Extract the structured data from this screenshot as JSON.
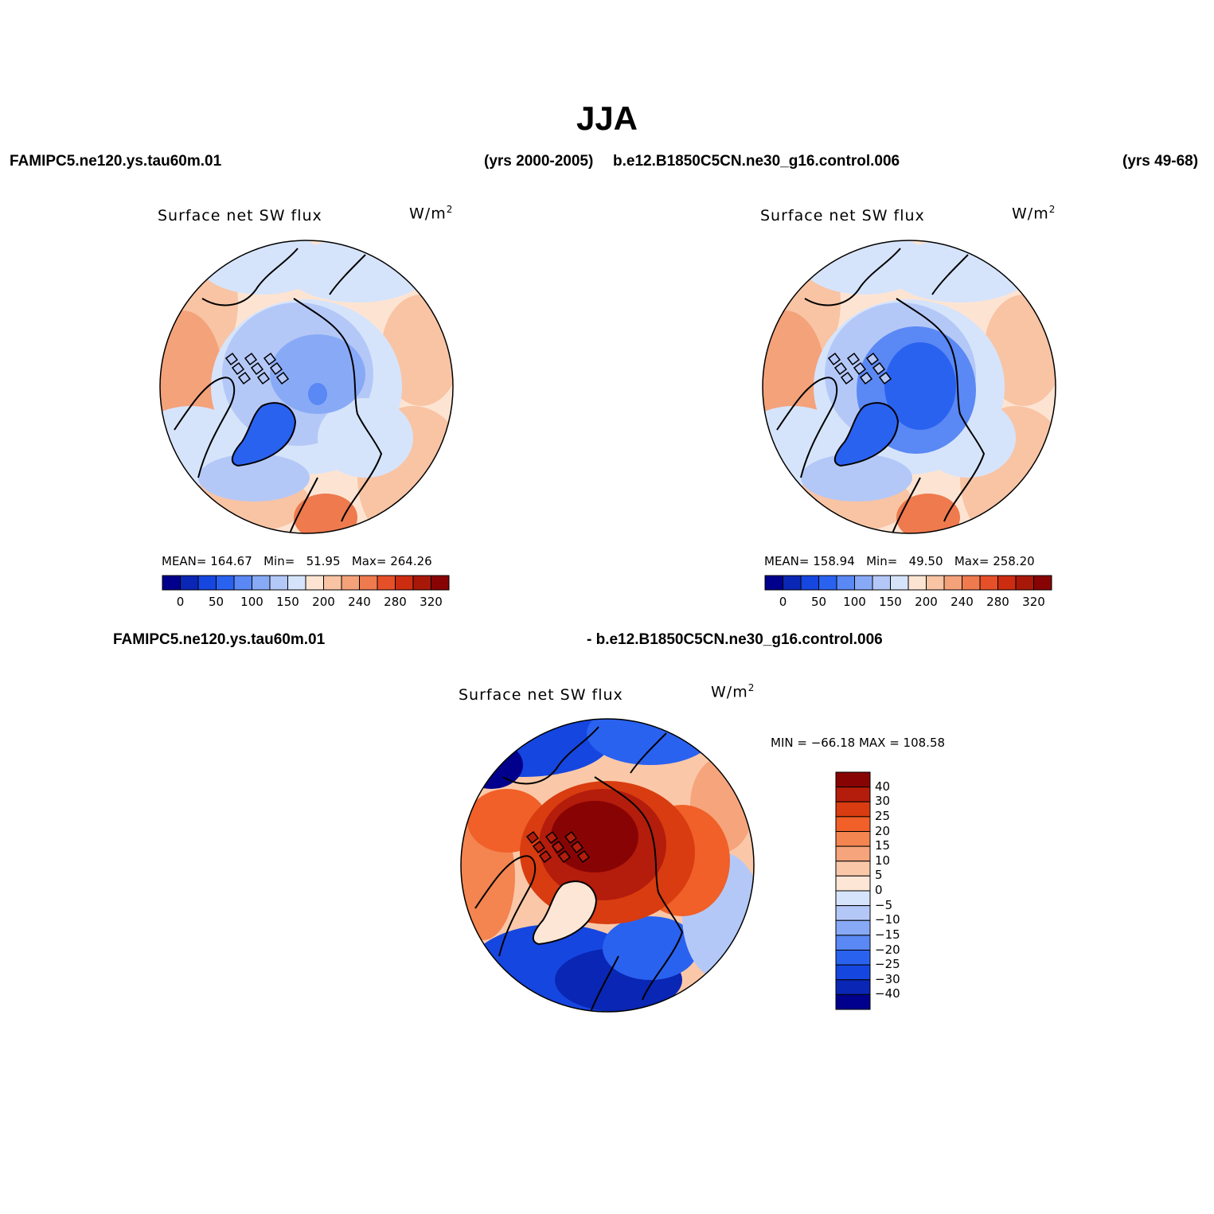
{
  "figure": {
    "title": "JJA",
    "header": {
      "left_case": "FAMIPC5.ne120.ys.tau60m.01",
      "left_years": "(yrs 2000-2005)",
      "right_case": "b.e12.B1850C5CN.ne30_g16.control.006",
      "right_years": "(yrs 49-68)"
    },
    "diff_header": {
      "left": "FAMIPC5.ne120.ys.tau60m.01",
      "right": "- b.e12.B1850C5CN.ne30_g16.control.006"
    }
  },
  "panels": [
    {
      "title": "Surface net SW flux",
      "units_base": "W/m",
      "units_exp": "2",
      "mean_label": "MEAN=",
      "mean": "164.67",
      "min_label": "Min=",
      "min": "51.95",
      "max_label": "Max=",
      "max": "264.26"
    },
    {
      "title": "Surface net SW flux",
      "units_base": "W/m",
      "units_exp": "2",
      "mean_label": "MEAN=",
      "mean": "158.94",
      "min_label": "Min=",
      "min": "49.50",
      "max_label": "Max=",
      "max": "258.20"
    },
    {
      "title": "Surface net SW flux",
      "units_base": "W/m",
      "units_exp": "2",
      "minmax": "MIN = −66.18 MAX = 108.58"
    }
  ],
  "colorbars": {
    "field": {
      "colors": [
        "#00008c",
        "#0a26b4",
        "#1646e0",
        "#2a62f0",
        "#5a88f4",
        "#88aaf6",
        "#b4c8f8",
        "#d6e4fb",
        "#fde4d2",
        "#f8c4a4",
        "#f4a27a",
        "#ee7a4e",
        "#e65028",
        "#cc2c10",
        "#a81808",
        "#880404"
      ],
      "tick_labels": [
        "0",
        "50",
        "100",
        "150",
        "200",
        "240",
        "280",
        "320"
      ]
    },
    "diff": {
      "colors_top_to_bottom": [
        "#880404",
        "#b41c0c",
        "#d83c10",
        "#f06028",
        "#f48450",
        "#f6a47c",
        "#fac8a8",
        "#fde6d6",
        "#d6e4fb",
        "#b4c8f8",
        "#88aaf6",
        "#5a88f4",
        "#2a62f0",
        "#1646e0",
        "#0a26b4",
        "#00008c"
      ],
      "tick_labels": [
        "40",
        "30",
        "25",
        "20",
        "15",
        "10",
        "5",
        "0",
        "−5",
        "−10",
        "−15",
        "−20",
        "−25",
        "−30",
        "−40"
      ]
    }
  },
  "chart_data": [
    {
      "type": "heatmap",
      "title": "Surface net SW flux",
      "case": "FAMIPC5.ne120.ys.tau60m.01 (yrs 2000-2005)",
      "projection": "north polar stereographic",
      "units": "W/m2",
      "mean": 164.67,
      "min": 51.95,
      "max": 264.26,
      "levels": [
        0,
        25,
        50,
        75,
        100,
        125,
        150,
        175,
        200,
        220,
        240,
        260,
        280,
        300,
        320
      ]
    },
    {
      "type": "heatmap",
      "title": "Surface net SW flux",
      "case": "b.e12.B1850C5CN.ne30_g16.control.006 (yrs 49-68)",
      "projection": "north polar stereographic",
      "units": "W/m2",
      "mean": 158.94,
      "min": 49.5,
      "max": 258.2,
      "levels": [
        0,
        25,
        50,
        75,
        100,
        125,
        150,
        175,
        200,
        220,
        240,
        260,
        280,
        300,
        320
      ]
    },
    {
      "type": "heatmap",
      "title": "Surface net SW flux",
      "case": "FAMIPC5.ne120.ys.tau60m.01 - b.e12.B1850C5CN.ne30_g16.control.006",
      "projection": "north polar stereographic",
      "units": "W/m2",
      "min": -66.18,
      "max": 108.58,
      "levels": [
        -40,
        -30,
        -25,
        -20,
        -15,
        -10,
        -5,
        0,
        5,
        10,
        15,
        20,
        25,
        30,
        40
      ]
    }
  ]
}
